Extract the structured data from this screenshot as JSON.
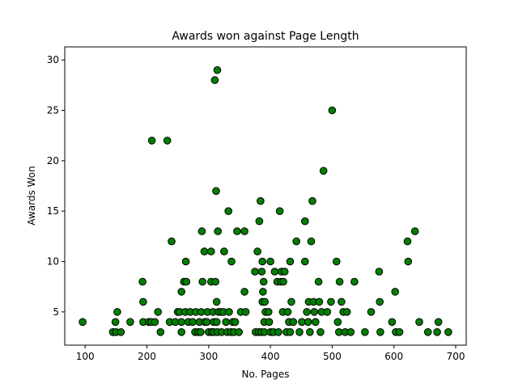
{
  "chart_data": {
    "type": "scatter",
    "title": "Awards won against Page Length",
    "xlabel": "No. Pages",
    "ylabel": "Awards Won",
    "xlim": [
      67,
      717
    ],
    "ylim": [
      1.7,
      31.3
    ],
    "xticks": [
      100,
      200,
      300,
      400,
      500,
      600,
      700
    ],
    "yticks": [
      5,
      10,
      15,
      20,
      25,
      30
    ],
    "grid": false,
    "legend": "none",
    "marker_color": "#008000",
    "marker_edge": "#000000",
    "points": [
      [
        96,
        4
      ],
      [
        145,
        3
      ],
      [
        149,
        4
      ],
      [
        150,
        3
      ],
      [
        152,
        5
      ],
      [
        158,
        3
      ],
      [
        173,
        4
      ],
      [
        193,
        8
      ],
      [
        194,
        6
      ],
      [
        194,
        4
      ],
      [
        203,
        4
      ],
      [
        208,
        22
      ],
      [
        207,
        4
      ],
      [
        213,
        4
      ],
      [
        218,
        5
      ],
      [
        222,
        3
      ],
      [
        233,
        22
      ],
      [
        237,
        4
      ],
      [
        240,
        12
      ],
      [
        246,
        4
      ],
      [
        250,
        5
      ],
      [
        253,
        5
      ],
      [
        256,
        4
      ],
      [
        256,
        7
      ],
      [
        256,
        3
      ],
      [
        260,
        8
      ],
      [
        262,
        5
      ],
      [
        263,
        10
      ],
      [
        264,
        8
      ],
      [
        267,
        4
      ],
      [
        270,
        5
      ],
      [
        274,
        4
      ],
      [
        278,
        3
      ],
      [
        279,
        5
      ],
      [
        283,
        3
      ],
      [
        285,
        4
      ],
      [
        287,
        3
      ],
      [
        288,
        5
      ],
      [
        289,
        13
      ],
      [
        290,
        8
      ],
      [
        293,
        11
      ],
      [
        294,
        4
      ],
      [
        297,
        4
      ],
      [
        298,
        5
      ],
      [
        300,
        3
      ],
      [
        304,
        11
      ],
      [
        304,
        8
      ],
      [
        305,
        3
      ],
      [
        307,
        5
      ],
      [
        308,
        4
      ],
      [
        308,
        3
      ],
      [
        310,
        28
      ],
      [
        311,
        8
      ],
      [
        312,
        17
      ],
      [
        314,
        29
      ],
      [
        313,
        6
      ],
      [
        313,
        4
      ],
      [
        314,
        3
      ],
      [
        315,
        13
      ],
      [
        316,
        5
      ],
      [
        320,
        5
      ],
      [
        321,
        3
      ],
      [
        324,
        5
      ],
      [
        325,
        11
      ],
      [
        328,
        4
      ],
      [
        330,
        3
      ],
      [
        332,
        15
      ],
      [
        333,
        5
      ],
      [
        336,
        3
      ],
      [
        337,
        10
      ],
      [
        339,
        4
      ],
      [
        341,
        3
      ],
      [
        343,
        4
      ],
      [
        346,
        13
      ],
      [
        349,
        3
      ],
      [
        352,
        5
      ],
      [
        358,
        13
      ],
      [
        358,
        7
      ],
      [
        360,
        5
      ],
      [
        375,
        9
      ],
      [
        376,
        3
      ],
      [
        379,
        11
      ],
      [
        381,
        3
      ],
      [
        382,
        14
      ],
      [
        384,
        16
      ],
      [
        385,
        3
      ],
      [
        386,
        9
      ],
      [
        387,
        10
      ],
      [
        387,
        6
      ],
      [
        388,
        7
      ],
      [
        389,
        8
      ],
      [
        390,
        4
      ],
      [
        390,
        3
      ],
      [
        391,
        6
      ],
      [
        392,
        5
      ],
      [
        397,
        5
      ],
      [
        398,
        4
      ],
      [
        400,
        3
      ],
      [
        400,
        10
      ],
      [
        405,
        3
      ],
      [
        407,
        9
      ],
      [
        411,
        8
      ],
      [
        413,
        3
      ],
      [
        415,
        15
      ],
      [
        417,
        8
      ],
      [
        418,
        9
      ],
      [
        420,
        5
      ],
      [
        421,
        8
      ],
      [
        423,
        9
      ],
      [
        426,
        3
      ],
      [
        428,
        5
      ],
      [
        430,
        4
      ],
      [
        432,
        10
      ],
      [
        432,
        3
      ],
      [
        434,
        6
      ],
      [
        437,
        4
      ],
      [
        442,
        12
      ],
      [
        447,
        3
      ],
      [
        451,
        4
      ],
      [
        456,
        14
      ],
      [
        456,
        10
      ],
      [
        459,
        5
      ],
      [
        461,
        4
      ],
      [
        462,
        6
      ],
      [
        464,
        3
      ],
      [
        466,
        12
      ],
      [
        468,
        16
      ],
      [
        470,
        6
      ],
      [
        471,
        5
      ],
      [
        473,
        4
      ],
      [
        478,
        8
      ],
      [
        479,
        6
      ],
      [
        481,
        3
      ],
      [
        483,
        5
      ],
      [
        486,
        19
      ],
      [
        492,
        5
      ],
      [
        498,
        6
      ],
      [
        500,
        25
      ],
      [
        507,
        10
      ],
      [
        509,
        4
      ],
      [
        511,
        3
      ],
      [
        512,
        8
      ],
      [
        515,
        6
      ],
      [
        518,
        5
      ],
      [
        521,
        3
      ],
      [
        524,
        5
      ],
      [
        530,
        3
      ],
      [
        536,
        8
      ],
      [
        553,
        3
      ],
      [
        563,
        5
      ],
      [
        576,
        9
      ],
      [
        577,
        6
      ],
      [
        578,
        3
      ],
      [
        597,
        4
      ],
      [
        602,
        7
      ],
      [
        603,
        3
      ],
      [
        609,
        3
      ],
      [
        622,
        12
      ],
      [
        623,
        10
      ],
      [
        634,
        13
      ],
      [
        641,
        4
      ],
      [
        655,
        3
      ],
      [
        670,
        3
      ],
      [
        672,
        4
      ],
      [
        688,
        3
      ]
    ]
  }
}
